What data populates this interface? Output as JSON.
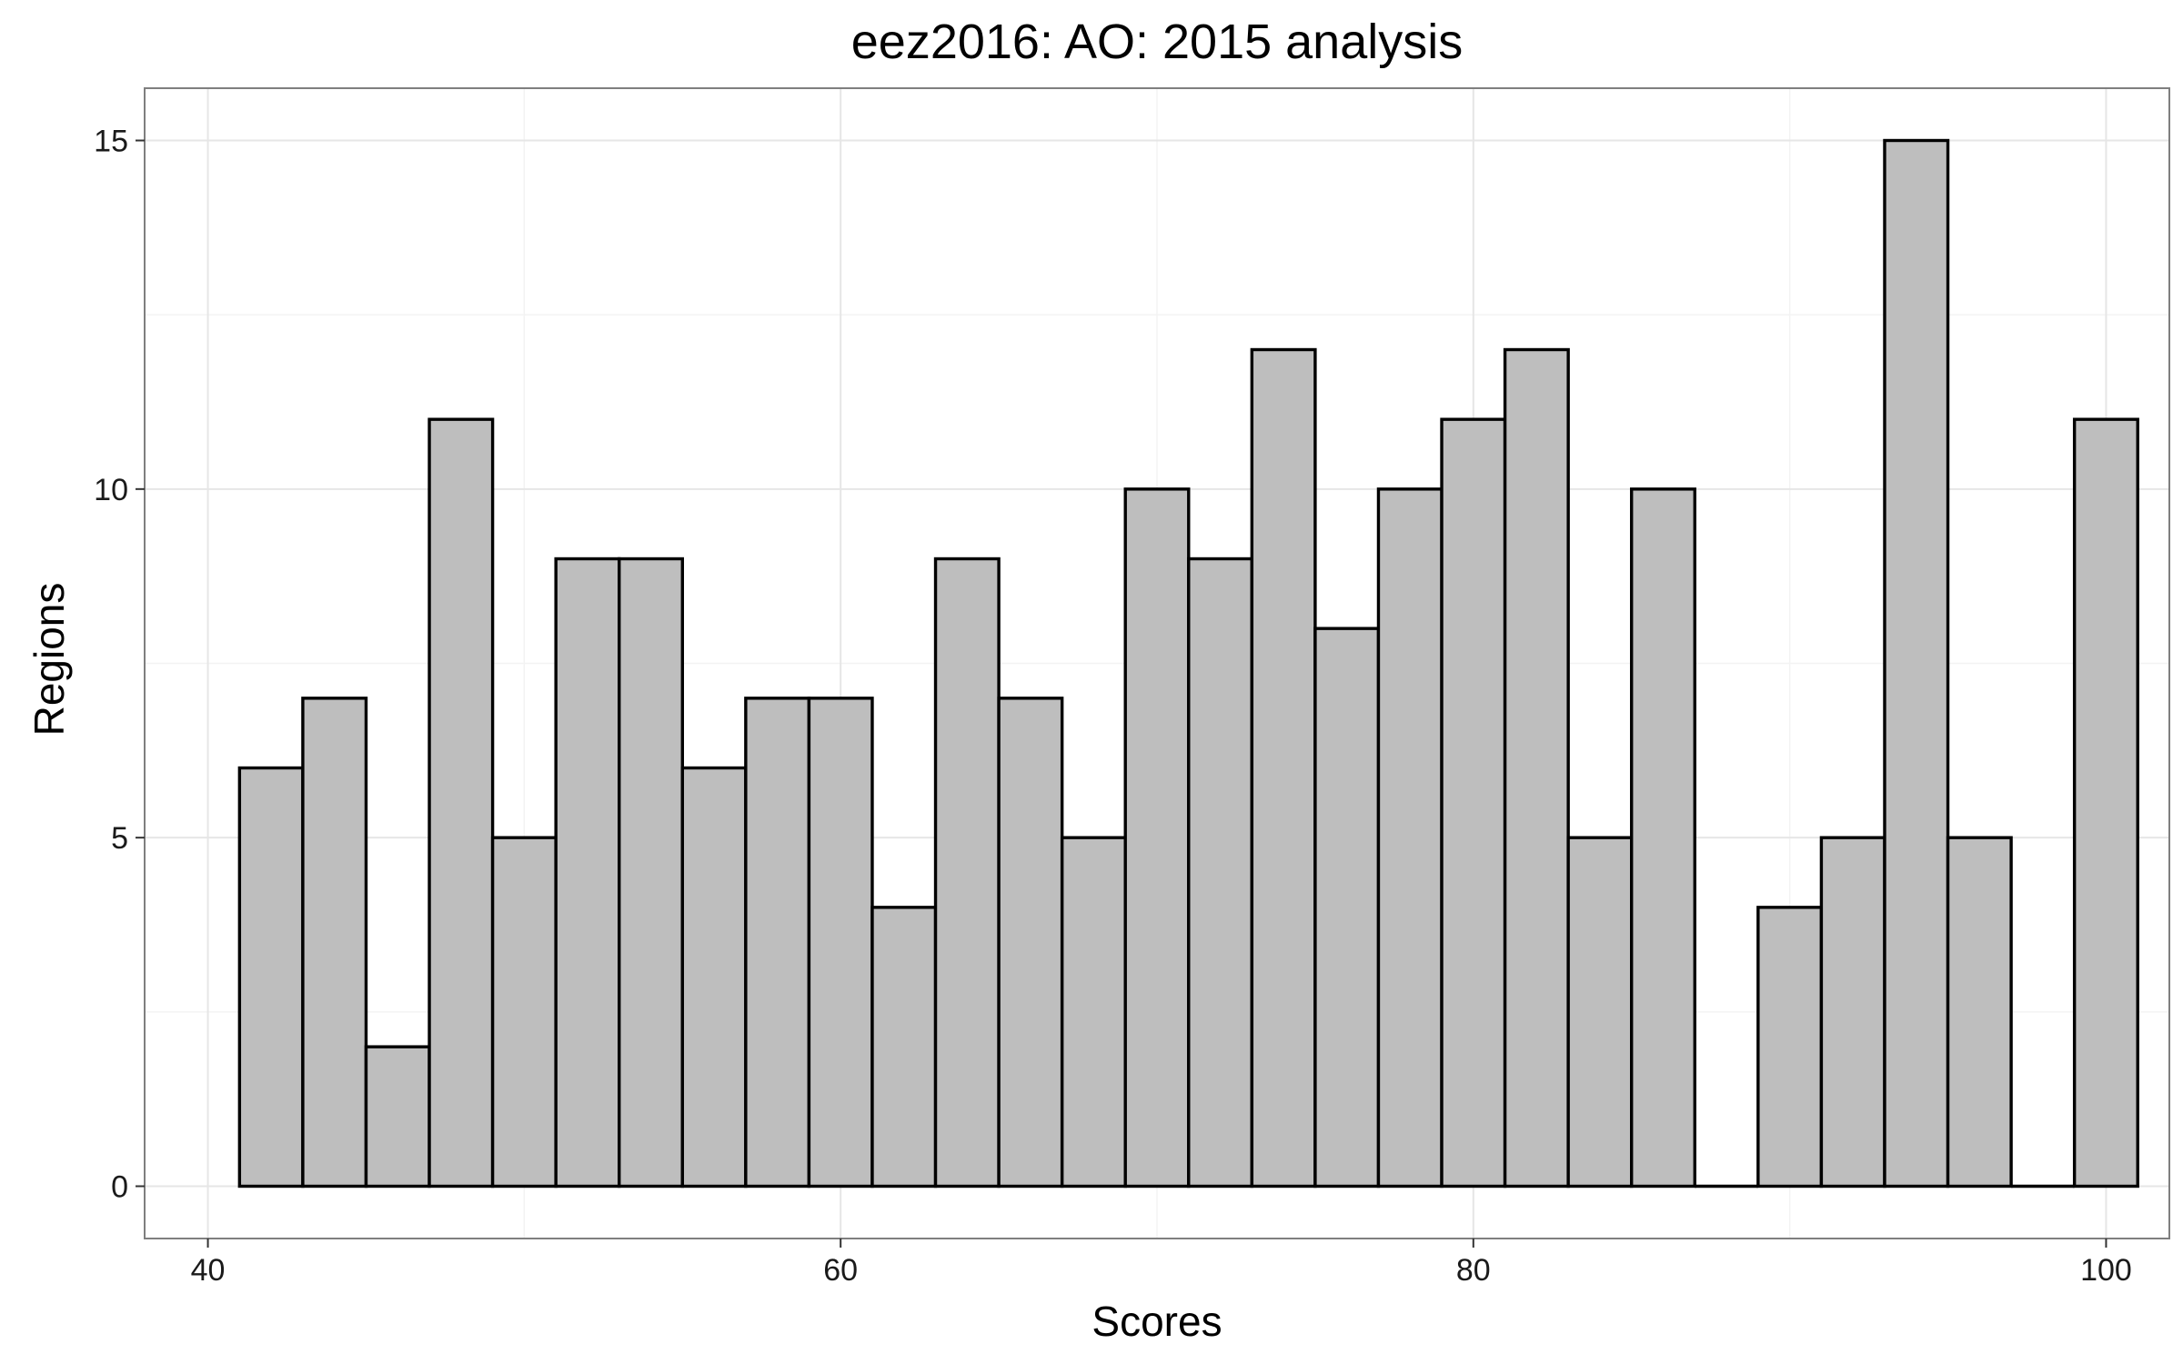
{
  "chart_data": {
    "type": "bar",
    "title": "eez2016: AO: 2015 analysis",
    "xlabel": "Scores",
    "ylabel": "Regions",
    "bin_width": 2,
    "bins": [
      {
        "x0": 41,
        "x1": 43,
        "count": 6
      },
      {
        "x0": 43,
        "x1": 45,
        "count": 7
      },
      {
        "x0": 45,
        "x1": 47,
        "count": 2
      },
      {
        "x0": 47,
        "x1": 49,
        "count": 11
      },
      {
        "x0": 49,
        "x1": 51,
        "count": 5
      },
      {
        "x0": 51,
        "x1": 53,
        "count": 9
      },
      {
        "x0": 53,
        "x1": 55,
        "count": 9
      },
      {
        "x0": 55,
        "x1": 57,
        "count": 6
      },
      {
        "x0": 57,
        "x1": 59,
        "count": 7
      },
      {
        "x0": 59,
        "x1": 61,
        "count": 7
      },
      {
        "x0": 61,
        "x1": 63,
        "count": 4
      },
      {
        "x0": 63,
        "x1": 65,
        "count": 9
      },
      {
        "x0": 65,
        "x1": 67,
        "count": 7
      },
      {
        "x0": 67,
        "x1": 69,
        "count": 5
      },
      {
        "x0": 69,
        "x1": 71,
        "count": 10
      },
      {
        "x0": 71,
        "x1": 73,
        "count": 9
      },
      {
        "x0": 73,
        "x1": 75,
        "count": 12
      },
      {
        "x0": 75,
        "x1": 77,
        "count": 8
      },
      {
        "x0": 77,
        "x1": 79,
        "count": 10
      },
      {
        "x0": 79,
        "x1": 81,
        "count": 11
      },
      {
        "x0": 81,
        "x1": 83,
        "count": 12
      },
      {
        "x0": 83,
        "x1": 85,
        "count": 5
      },
      {
        "x0": 85,
        "x1": 87,
        "count": 10
      },
      {
        "x0": 87,
        "x1": 89,
        "count": 0
      },
      {
        "x0": 89,
        "x1": 91,
        "count": 4
      },
      {
        "x0": 91,
        "x1": 93,
        "count": 5
      },
      {
        "x0": 93,
        "x1": 95,
        "count": 15
      },
      {
        "x0": 95,
        "x1": 97,
        "count": 5
      },
      {
        "x0": 97,
        "x1": 99,
        "count": 0
      },
      {
        "x0": 99,
        "x1": 101,
        "count": 11
      }
    ],
    "xlim": [
      38,
      102
    ],
    "ylim": [
      -0.75,
      15.75
    ],
    "x_ticks": [
      40,
      60,
      80,
      100
    ],
    "x_tick_labels": [
      "40",
      "60",
      "80",
      "100"
    ],
    "y_ticks": [
      0,
      5,
      10,
      15
    ],
    "y_tick_labels": [
      "0",
      "5",
      "10",
      "15"
    ],
    "grid": true,
    "legend": "none",
    "colors": {
      "bar_fill": "#bebebe",
      "bar_outline": "#000000",
      "panel_border": "#7f7f7f",
      "grid": "#e6e6e6"
    }
  }
}
